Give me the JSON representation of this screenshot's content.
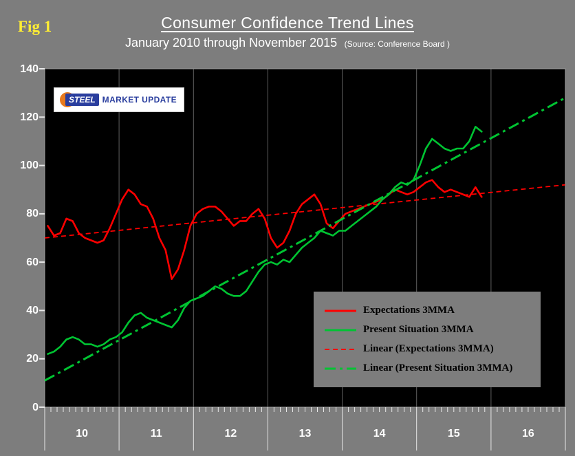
{
  "fig_label": "Fig 1",
  "header": {
    "title": "Consumer Confidence Trend Lines",
    "subtitle": "January 2010 through November 2015",
    "source": "(Source: Conference Board )"
  },
  "logo": {
    "part1": "STEEL",
    "part2": "MARKET",
    "part3": "UPDATE"
  },
  "colors": {
    "background": "#7d7d7d",
    "plot_background": "#000000",
    "gridline": "#5f5f5f",
    "tick": "#e8e8e8",
    "text": "#ffffff",
    "fig_label": "#ffee33",
    "expectations": "#ff0000",
    "present_situation": "#00c432",
    "legend_background": "#7d7d7d"
  },
  "chart_data": {
    "type": "line",
    "title": "Consumer Confidence Trend Lines",
    "subtitle": "January 2010 through November 2015",
    "source": "(Source: Conference Board )",
    "x_start": "2010-01",
    "x_end": "2015-11",
    "x_domain_months": 84,
    "xticklabels": [
      "10",
      "11",
      "12",
      "13",
      "14",
      "15",
      "16"
    ],
    "yticks": [
      0,
      20,
      40,
      60,
      80,
      100,
      120,
      140
    ],
    "ylim": [
      0,
      140
    ],
    "grid": "vertical year gridlines only",
    "legend_position": "lower right overlay",
    "series": [
      {
        "name": "Expectations 3MMA",
        "color": "#ff0000",
        "style": "solid",
        "start": "2010-01",
        "values": [
          75,
          71,
          72,
          78,
          77,
          72,
          70,
          69,
          68,
          69,
          74,
          80,
          86,
          90,
          88,
          84,
          83,
          78,
          70,
          65,
          53,
          57,
          65,
          75,
          80,
          82,
          83,
          83,
          81,
          78,
          75,
          77,
          77,
          80,
          82,
          78,
          70,
          66,
          68,
          73,
          80,
          84,
          86,
          88,
          84,
          76,
          74,
          77,
          80,
          81,
          82,
          83,
          84,
          85,
          86,
          88,
          90,
          89,
          88,
          89,
          91,
          93,
          94,
          91,
          89,
          90,
          89,
          88,
          87,
          91,
          87
        ]
      },
      {
        "name": "Present Situation 3MMA",
        "color": "#00c432",
        "style": "solid",
        "start": "2010-01",
        "values": [
          22,
          23,
          25,
          28,
          29,
          28,
          26,
          26,
          25,
          26,
          28,
          29,
          31,
          35,
          38,
          39,
          37,
          36,
          35,
          34,
          33,
          36,
          41,
          44,
          45,
          46,
          48,
          50,
          49,
          47,
          46,
          46,
          48,
          52,
          56,
          59,
          60,
          59,
          61,
          60,
          63,
          66,
          68,
          70,
          73,
          72,
          71,
          73,
          73,
          75,
          77,
          79,
          81,
          83,
          86,
          88,
          91,
          93,
          92,
          94,
          100,
          107,
          111,
          109,
          107,
          106,
          107,
          107,
          110,
          116,
          114
        ]
      },
      {
        "name": "Linear (Expectations 3MMA)",
        "color": "#ff0000",
        "style": "dashed",
        "trend_endpoints": [
          70,
          92
        ],
        "trend_x_span_months": [
          0,
          84
        ]
      },
      {
        "name": "Linear (Present Situation 3MMA)",
        "color": "#00c432",
        "style": "dashdot",
        "trend_endpoints": [
          11,
          128
        ],
        "trend_x_span_months": [
          0,
          84
        ]
      }
    ]
  }
}
